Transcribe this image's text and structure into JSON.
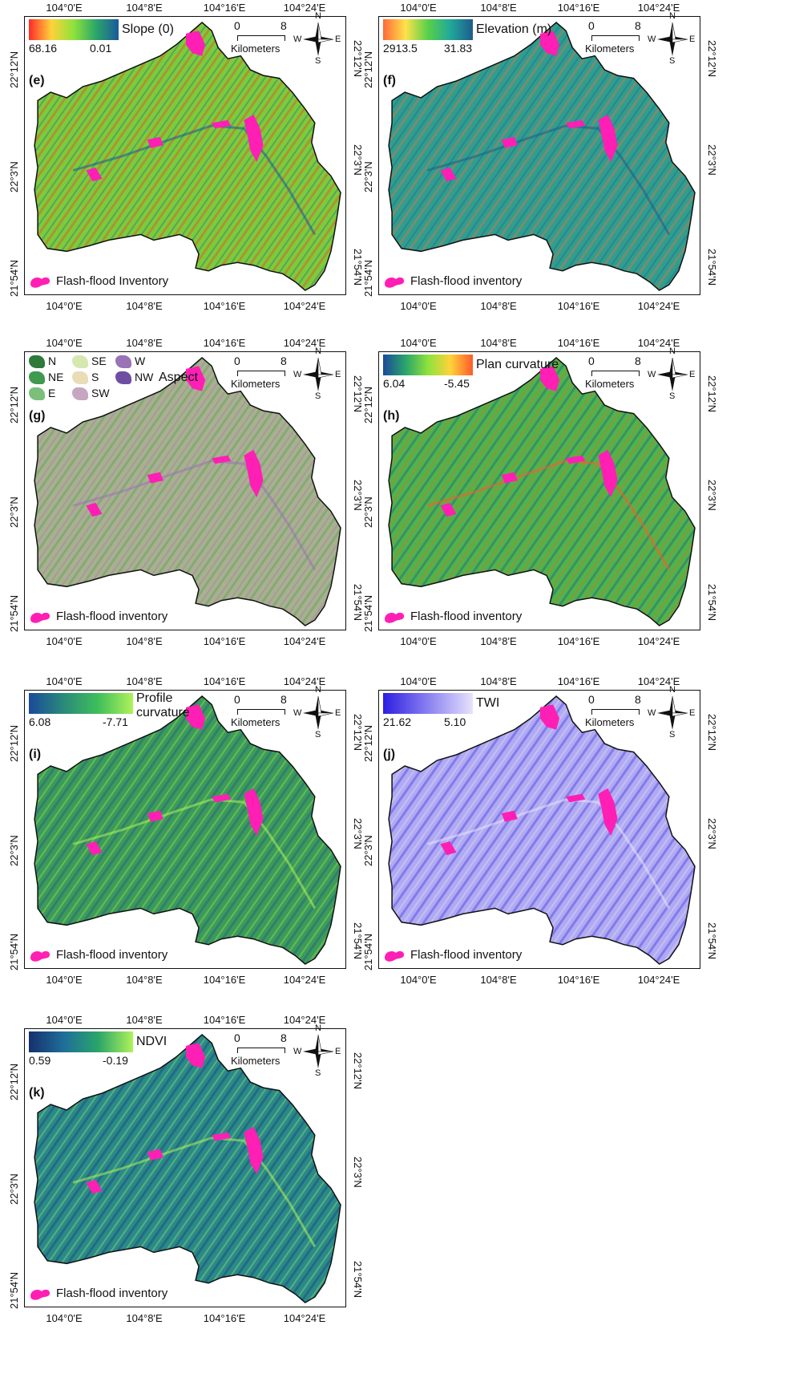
{
  "colors": {
    "flood": "#ff1fb4",
    "frame": "#111111"
  },
  "common": {
    "lon_ticks": [
      "104°0'E",
      "104°8'E",
      "104°16'E",
      "104°24'E"
    ],
    "lat_ticks": [
      "22°12'N",
      "22°3'N",
      "21°54'N"
    ],
    "scale_start": "0",
    "scale_end": "8",
    "scale_unit": "Kilometers",
    "compass": {
      "n": "N",
      "s": "S",
      "e": "E",
      "w": "W"
    },
    "inventory_label": "Flash-flood inventory",
    "inventory_label_e": "Flash-flood Inventory"
  },
  "panels": [
    {
      "id": "e",
      "letter": "(e)",
      "title": "Slope (0)",
      "max": "68.16",
      "min": "0.01",
      "ramp": [
        "#ff2a2a",
        "#ffd23a",
        "#8ee23c",
        "#2aa56a",
        "#1a5a9a"
      ],
      "fill": "#7ccc3a"
    },
    {
      "id": "f",
      "letter": "(f)",
      "title": "Elevation (m)",
      "max": "2913.5",
      "min": "31.83",
      "ramp": [
        "#ff6a3a",
        "#ffe24a",
        "#58d04a",
        "#20a89a",
        "#1e5c8c"
      ],
      "fill": "#2f9e8e"
    },
    {
      "id": "g",
      "letter": "(g)",
      "title": "Aspect",
      "classes": [
        {
          "label": "N",
          "color": "#2d7a3a"
        },
        {
          "label": "NE",
          "color": "#3f9a4f"
        },
        {
          "label": "E",
          "color": "#7bbf7b"
        },
        {
          "label": "SE",
          "color": "#d6e8b0"
        },
        {
          "label": "S",
          "color": "#e9dcb6"
        },
        {
          "label": "SW",
          "color": "#c7a6c2"
        },
        {
          "label": "W",
          "color": "#9a72b6"
        },
        {
          "label": "NW",
          "color": "#6e4ea2"
        }
      ],
      "fill": "#a9b08e"
    },
    {
      "id": "h",
      "letter": "(h)",
      "title": "Plan curvature",
      "max": "6.04",
      "min": "-5.45",
      "ramp": [
        "#1a4a9a",
        "#2aa56a",
        "#8ee23c",
        "#ffd23a",
        "#ff5a2a"
      ],
      "fill": "#4fb44a"
    },
    {
      "id": "i",
      "letter": "(i)",
      "title": "Profile curvature",
      "max": "6.08",
      "min": "-7.71",
      "ramp": [
        "#1a4a9a",
        "#2a8a7a",
        "#3fbf5a",
        "#aef25a"
      ],
      "fill": "#3c9b58"
    },
    {
      "id": "j",
      "letter": "(j)",
      "title": "TWI",
      "max": "21.62",
      "min": "5.10",
      "ramp": [
        "#2c1ee0",
        "#8a80f0",
        "#e6e2fc"
      ],
      "fill": "#b0aaf2"
    },
    {
      "id": "k",
      "letter": "(k)",
      "title": "NDVI",
      "max": "0.59",
      "min": "-0.19",
      "ramp": [
        "#16306e",
        "#1e6e9a",
        "#2aa56a",
        "#aef25a"
      ],
      "fill": "#2a8a8a"
    }
  ]
}
